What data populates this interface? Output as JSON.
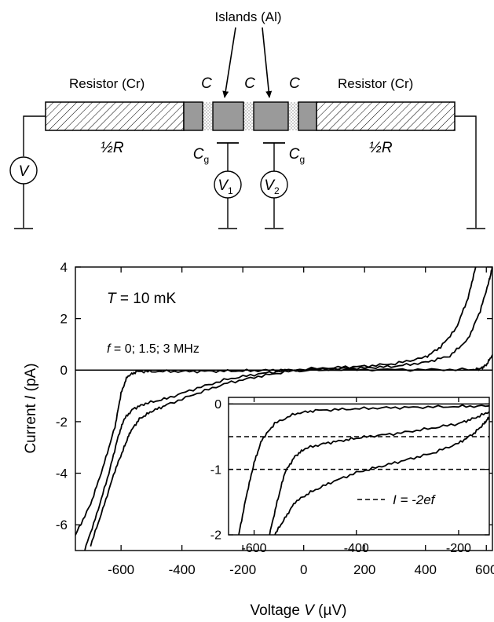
{
  "circuit": {
    "islands_label": "Islands (Al)",
    "resistor_left": "Resistor (Cr)",
    "resistor_right": "Resistor (Cr)",
    "c_label": "C",
    "cg_main": "C",
    "cg_sub": "g",
    "half_r": "½R",
    "v_source": "V",
    "v1_main": "V",
    "v1_sub": "1",
    "v2_main": "V",
    "v2_sub": "2"
  },
  "chart_data": [
    {
      "type": "line",
      "xlabel": "Voltage V (µV)",
      "xlabel_parts": {
        "prefix": "Voltage ",
        "var": "V",
        "units": " (µV)"
      },
      "ylabel": "Current I (pA)",
      "ylabel_parts": {
        "prefix": "Current ",
        "var": "I",
        "units": " (pA)"
      },
      "xlim": [
        -750,
        620
      ],
      "ylim": [
        -7,
        4
      ],
      "x_ticks": [
        -600,
        -400,
        -200,
        0,
        200,
        400,
        600
      ],
      "x_tick_labels": [
        "-600",
        "-400",
        "-200",
        "0",
        "200",
        "400",
        "600"
      ],
      "y_ticks": [
        -6,
        -4,
        -2,
        0,
        2,
        4
      ],
      "y_tick_labels": [
        "-6",
        "-4",
        "-2",
        "0",
        "2",
        "4"
      ],
      "annotations": {
        "temperature": {
          "var": "T",
          "text": " = 10 mK"
        },
        "frequency": {
          "var": "f",
          "text": " = 0;  1.5;  3 MHz"
        }
      },
      "series": [
        {
          "values": [
            [
              -750,
              -6.4
            ],
            [
              -700,
              -5.2
            ],
            [
              -660,
              -3.8
            ],
            [
              -620,
              -2.2
            ],
            [
              -600,
              -0.9
            ],
            [
              -580,
              -0.25
            ],
            [
              -550,
              -0.06
            ],
            [
              -500,
              -0.05
            ],
            [
              -400,
              -0.05
            ],
            [
              -300,
              -0.04
            ],
            [
              -200,
              -0.03
            ],
            [
              -100,
              0.0
            ],
            [
              0,
              0.0
            ],
            [
              200,
              0.02
            ],
            [
              400,
              0.02
            ],
            [
              560,
              0.02
            ],
            [
              580,
              0.05
            ],
            [
              600,
              0.2
            ],
            [
              620,
              0.6
            ]
          ]
        },
        {
          "values": [
            [
              -720,
              -7.0
            ],
            [
              -680,
              -5.6
            ],
            [
              -640,
              -4.0
            ],
            [
              -610,
              -2.6
            ],
            [
              -590,
              -1.9
            ],
            [
              -560,
              -1.5
            ],
            [
              -520,
              -1.3
            ],
            [
              -450,
              -1.1
            ],
            [
              -350,
              -0.7
            ],
            [
              -250,
              -0.35
            ],
            [
              -150,
              -0.15
            ],
            [
              -50,
              0.0
            ],
            [
              100,
              0.1
            ],
            [
              200,
              0.15
            ],
            [
              300,
              0.25
            ],
            [
              400,
              0.5
            ],
            [
              450,
              0.9
            ],
            [
              500,
              1.6
            ],
            [
              540,
              2.8
            ],
            [
              565,
              4.0
            ]
          ]
        },
        {
          "values": [
            [
              -700,
              -6.8
            ],
            [
              -660,
              -5.4
            ],
            [
              -620,
              -3.9
            ],
            [
              -590,
              -3.0
            ],
            [
              -570,
              -2.4
            ],
            [
              -540,
              -1.9
            ],
            [
              -500,
              -1.6
            ],
            [
              -450,
              -1.35
            ],
            [
              -350,
              -0.9
            ],
            [
              -250,
              -0.5
            ],
            [
              -150,
              -0.25
            ],
            [
              -50,
              -0.05
            ],
            [
              100,
              0.05
            ],
            [
              200,
              0.08
            ],
            [
              300,
              0.15
            ],
            [
              400,
              0.3
            ],
            [
              480,
              0.55
            ],
            [
              540,
              1.2
            ],
            [
              580,
              2.3
            ],
            [
              610,
              3.5
            ],
            [
              620,
              4.0
            ]
          ]
        }
      ]
    },
    {
      "type": "line",
      "xlim": [
        -650,
        -140
      ],
      "ylim": [
        -2,
        0.1
      ],
      "x_ticks": [
        -600,
        -400,
        -200
      ],
      "x_tick_labels": [
        "-600",
        "-400",
        "-200"
      ],
      "y_ticks": [
        0,
        -1,
        -2
      ],
      "y_tick_labels": [
        "0",
        "-1",
        "-2"
      ],
      "reference_lines": [
        -0.5,
        -1.0
      ],
      "legend": {
        "var": "I",
        "text": " = -2ef"
      },
      "series": [
        {
          "values": [
            [
              -630,
              -2.0
            ],
            [
              -615,
              -1.4
            ],
            [
              -600,
              -0.9
            ],
            [
              -585,
              -0.55
            ],
            [
              -560,
              -0.3
            ],
            [
              -520,
              -0.15
            ],
            [
              -480,
              -0.1
            ],
            [
              -420,
              -0.08
            ],
            [
              -350,
              -0.06
            ],
            [
              -280,
              -0.05
            ],
            [
              -200,
              -0.04
            ],
            [
              -140,
              -0.03
            ]
          ]
        },
        {
          "values": [
            [
              -570,
              -2.0
            ],
            [
              -555,
              -1.5
            ],
            [
              -540,
              -1.05
            ],
            [
              -520,
              -0.8
            ],
            [
              -500,
              -0.68
            ],
            [
              -460,
              -0.6
            ],
            [
              -420,
              -0.55
            ],
            [
              -380,
              -0.5
            ],
            [
              -320,
              -0.45
            ],
            [
              -260,
              -0.38
            ],
            [
              -200,
              -0.3
            ],
            [
              -170,
              -0.22
            ],
            [
              -140,
              -0.12
            ]
          ]
        },
        {
          "values": [
            [
              -560,
              -2.0
            ],
            [
              -540,
              -1.75
            ],
            [
              -520,
              -1.5
            ],
            [
              -490,
              -1.35
            ],
            [
              -450,
              -1.2
            ],
            [
              -400,
              -1.05
            ],
            [
              -350,
              -0.95
            ],
            [
              -300,
              -0.85
            ],
            [
              -250,
              -0.75
            ],
            [
              -200,
              -0.6
            ],
            [
              -170,
              -0.45
            ],
            [
              -150,
              -0.3
            ],
            [
              -140,
              -0.2
            ]
          ]
        }
      ]
    }
  ]
}
